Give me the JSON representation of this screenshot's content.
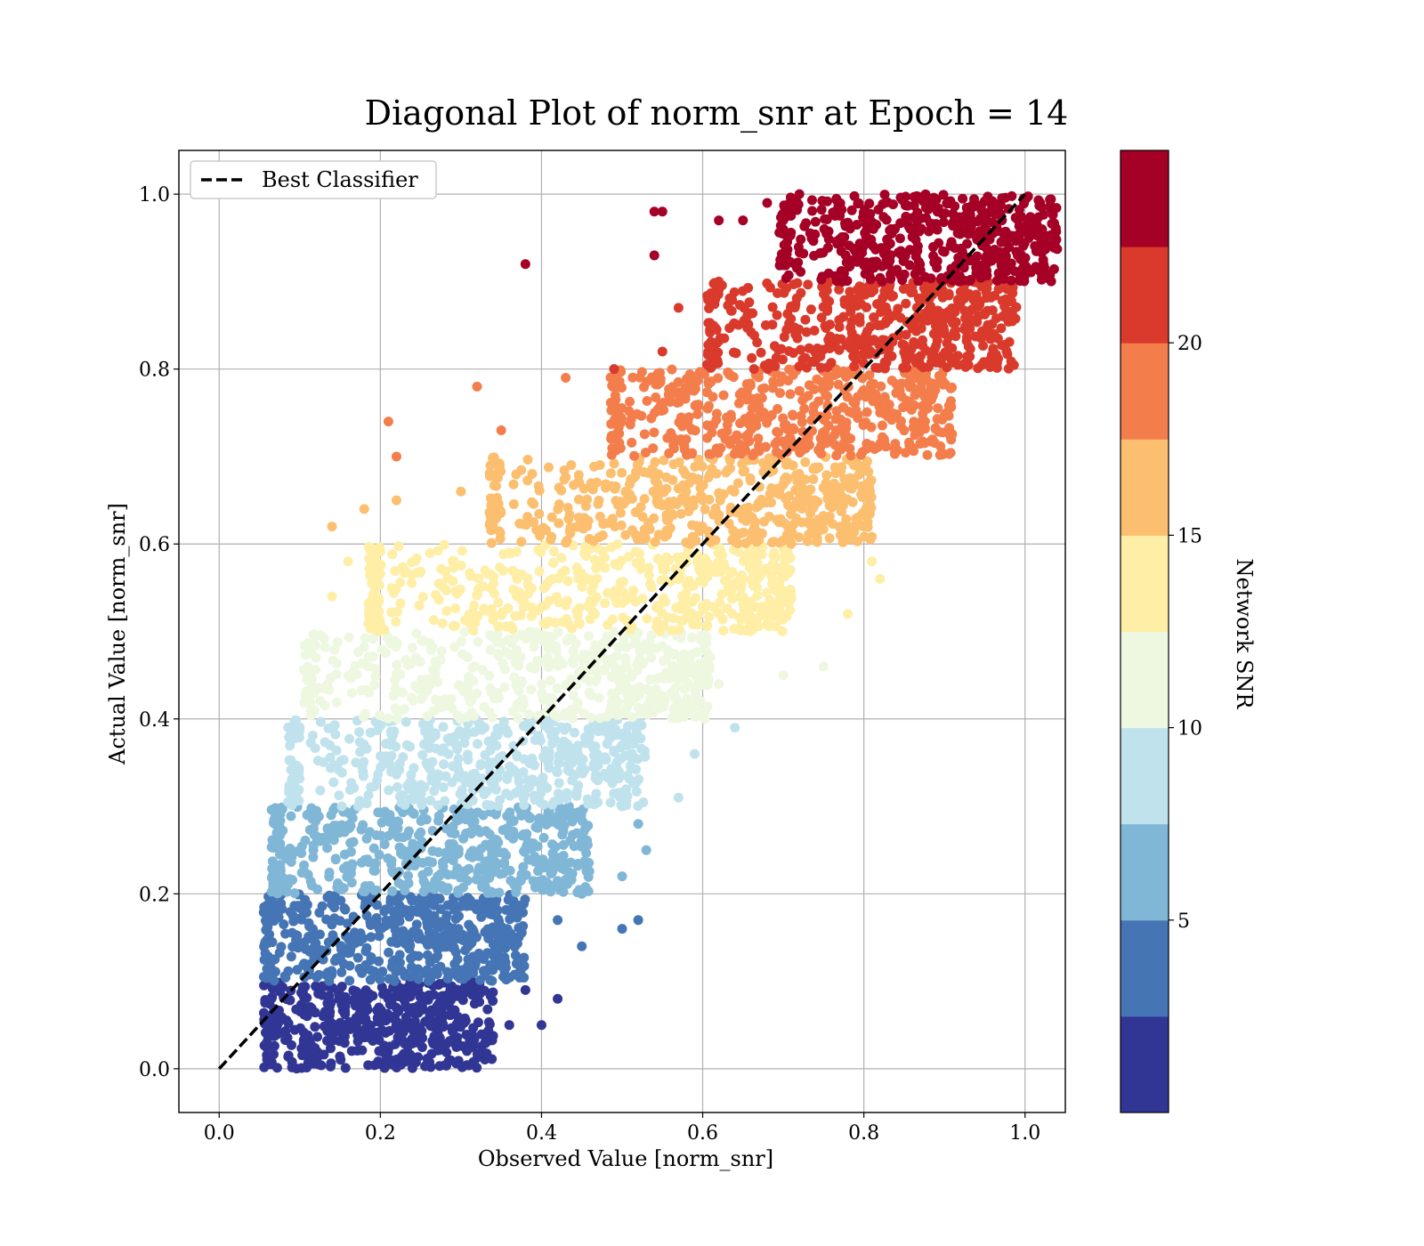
{
  "chart_data": {
    "type": "scatter",
    "title": "Diagonal Plot of norm_snr at Epoch = 14",
    "xlabel": "Observed Value [norm_snr]",
    "ylabel": "Actual Value [norm_snr]",
    "xlim": [
      -0.05,
      1.05
    ],
    "ylim": [
      -0.05,
      1.05
    ],
    "xticks": [
      "0.0",
      "0.2",
      "0.4",
      "0.6",
      "0.8",
      "1.0"
    ],
    "yticks": [
      "0.0",
      "0.2",
      "0.4",
      "0.6",
      "0.8",
      "1.0"
    ],
    "grid": true,
    "legend": {
      "placement": "top-left",
      "entries": [
        {
          "label": "Best Classifier",
          "style": "dashed",
          "color": "#000000"
        }
      ]
    },
    "reference_line": {
      "name": "Best Classifier",
      "x": [
        0,
        1
      ],
      "y": [
        0,
        1
      ]
    },
    "colorbar": {
      "label": "Network SNR",
      "range": [
        0,
        25
      ],
      "ticks": [
        "5",
        "10",
        "15",
        "20"
      ],
      "colors": [
        "#313695",
        "#4575b4",
        "#80b6d6",
        "#bfe2ed",
        "#eef7e0",
        "#feeea6",
        "#fcbe6f",
        "#f47d4c",
        "#d93a2b",
        "#a50026"
      ]
    },
    "bands": [
      {
        "y_range": [
          0.0,
          0.1
        ],
        "x_core": [
          0.07,
          0.28
        ],
        "color": "#313695",
        "outliers": [
          [
            0.33,
            0.03
          ],
          [
            0.36,
            0.05
          ],
          [
            0.4,
            0.05
          ],
          [
            0.42,
            0.08
          ],
          [
            0.38,
            0.09
          ]
        ]
      },
      {
        "y_range": [
          0.1,
          0.2
        ],
        "x_core": [
          0.07,
          0.32
        ],
        "color": "#4575b4",
        "outliers": [
          [
            0.45,
            0.14
          ],
          [
            0.5,
            0.16
          ],
          [
            0.52,
            0.17
          ],
          [
            0.42,
            0.17
          ]
        ]
      },
      {
        "y_range": [
          0.2,
          0.3
        ],
        "x_core": [
          0.08,
          0.4
        ],
        "color": "#80b6d6",
        "outliers": [
          [
            0.53,
            0.25
          ],
          [
            0.52,
            0.28
          ],
          [
            0.5,
            0.22
          ],
          [
            0.45,
            0.2
          ]
        ]
      },
      {
        "y_range": [
          0.3,
          0.4
        ],
        "x_core": [
          0.1,
          0.47
        ],
        "color": "#bfe2ed",
        "outliers": [
          [
            0.57,
            0.31
          ],
          [
            0.64,
            0.39
          ],
          [
            0.59,
            0.36
          ],
          [
            0.5,
            0.3
          ]
        ]
      },
      {
        "y_range": [
          0.4,
          0.5
        ],
        "x_core": [
          0.12,
          0.55
        ],
        "color": "#eef7e0",
        "outliers": [
          [
            0.75,
            0.46
          ],
          [
            0.7,
            0.45
          ],
          [
            0.62,
            0.44
          ],
          [
            0.12,
            0.47
          ]
        ]
      },
      {
        "y_range": [
          0.5,
          0.6
        ],
        "x_core": [
          0.2,
          0.65
        ],
        "color": "#feeea6",
        "outliers": [
          [
            0.82,
            0.56
          ],
          [
            0.81,
            0.58
          ],
          [
            0.78,
            0.52
          ],
          [
            0.14,
            0.54
          ],
          [
            0.16,
            0.58
          ]
        ]
      },
      {
        "y_range": [
          0.6,
          0.7
        ],
        "x_core": [
          0.35,
          0.75
        ],
        "color": "#fcbe6f",
        "outliers": [
          [
            0.14,
            0.62
          ],
          [
            0.18,
            0.64
          ],
          [
            0.22,
            0.65
          ],
          [
            0.3,
            0.66
          ],
          [
            0.8,
            0.62
          ]
        ]
      },
      {
        "y_range": [
          0.7,
          0.8
        ],
        "x_core": [
          0.5,
          0.85
        ],
        "color": "#f47d4c",
        "outliers": [
          [
            0.21,
            0.74
          ],
          [
            0.22,
            0.7
          ],
          [
            0.32,
            0.78
          ],
          [
            0.35,
            0.73
          ],
          [
            0.43,
            0.79
          ]
        ]
      },
      {
        "y_range": [
          0.8,
          0.9
        ],
        "x_core": [
          0.62,
          0.93
        ],
        "color": "#d93a2b",
        "outliers": [
          [
            0.55,
            0.82
          ],
          [
            0.57,
            0.87
          ],
          [
            0.49,
            0.8
          ],
          [
            0.62,
            0.9
          ]
        ]
      },
      {
        "y_range": [
          0.9,
          1.0
        ],
        "x_core": [
          0.71,
          0.98
        ],
        "color": "#a50026",
        "outliers": [
          [
            0.38,
            0.92
          ],
          [
            0.54,
            0.93
          ],
          [
            0.54,
            0.98
          ],
          [
            0.55,
            0.98
          ],
          [
            0.62,
            0.97
          ],
          [
            0.65,
            0.97
          ],
          [
            0.68,
            0.99
          ],
          [
            0.7,
            0.97
          ],
          [
            0.72,
            1.0
          ]
        ]
      }
    ]
  }
}
